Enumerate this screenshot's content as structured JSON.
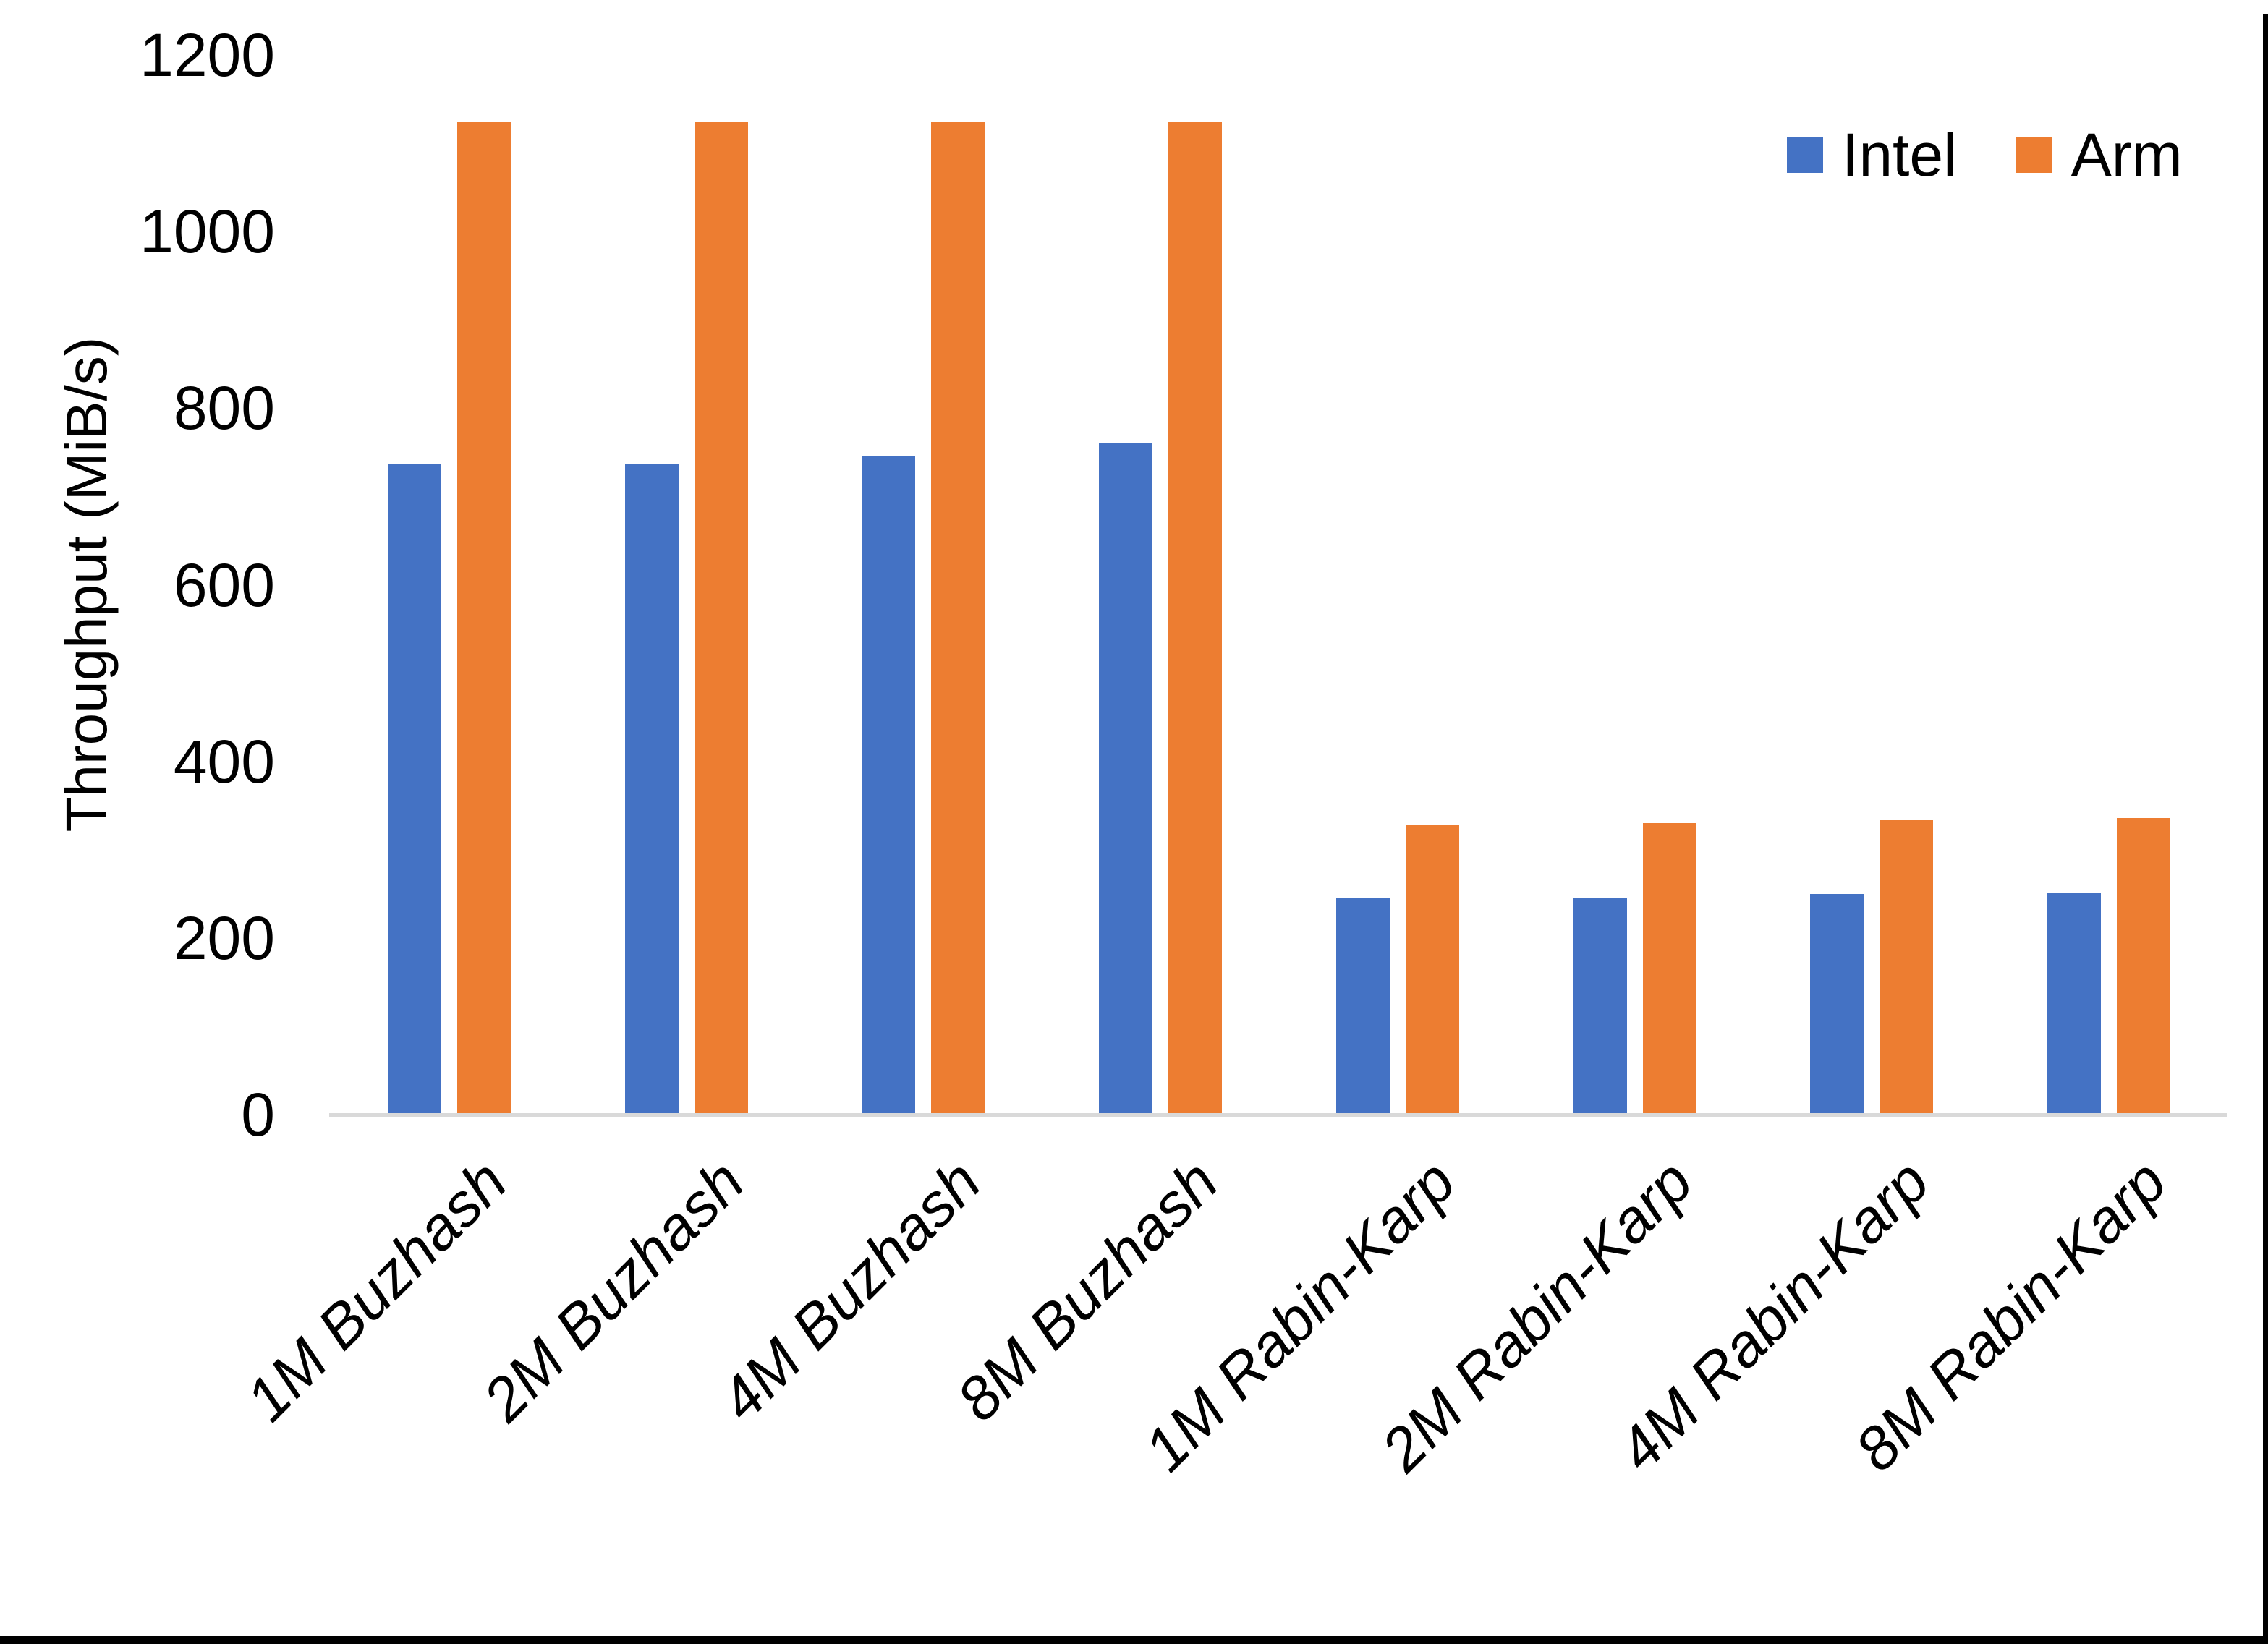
{
  "chart_data": {
    "type": "bar",
    "title": "",
    "xlabel": "",
    "ylabel": "Throughput (MiB/s)",
    "ylim": [
      0,
      1200
    ],
    "yticks": [
      0,
      200,
      400,
      600,
      800,
      1000,
      1200
    ],
    "grid": false,
    "legend_position": "top-right",
    "background_color": "#FFFFFF",
    "axis_line_color": "#D9D9D9",
    "categories": [
      "1M Buzhash",
      "2M Buzhash",
      "4M Buzhash",
      "8M Buzhash",
      "1M Rabin-Karp",
      "2M Rabin-Karp",
      "4M Rabin-Karp",
      "8M Rabin-Karp"
    ],
    "series": [
      {
        "name": "Intel",
        "color": "#4472C4",
        "values": [
          737,
          736,
          745,
          760,
          245,
          246,
          250,
          251
        ]
      },
      {
        "name": "Arm",
        "color": "#ED7D31",
        "values": [
          1125,
          1125,
          1125,
          1125,
          328,
          330,
          333,
          336
        ]
      }
    ]
  },
  "window": {
    "border_color": "#000000"
  }
}
